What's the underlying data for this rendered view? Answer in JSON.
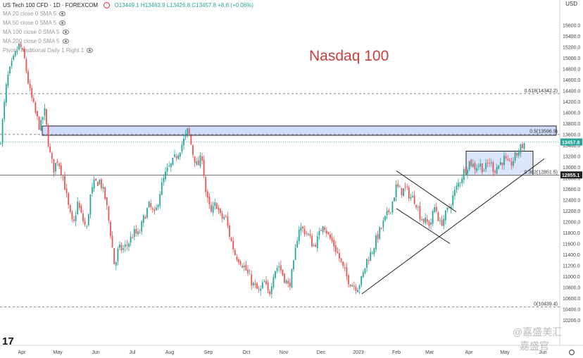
{
  "header": {
    "title": "US Tech 100 CFD · 1D · FOREXCOM",
    "ohlc": "O13449.1 H13463.9 L13426.8 C13457.8 +8.6 (+0.06%)",
    "ma_lines": [
      "MA 20 close 0 SMA 5",
      "MA 50 close 0 SMA 5",
      "MA 100 close 0 SMA 5",
      "MA 200 close 0 SMA 5",
      "Pivots Traditional Daily 1 Right 1"
    ]
  },
  "watermarks": [
    "@嘉盛美汇",
    "嘉盛官"
  ],
  "colors": {
    "up": "#26a69a",
    "down": "#ef5350",
    "zone": "#cfdcfb",
    "title": "#c8403f"
  },
  "chart_data": {
    "type": "candlestick",
    "title": "Nasdaq 100",
    "currency": "USD",
    "ylim": [
      10100,
      15900
    ],
    "xlim": [
      0,
      770
    ],
    "y_ticks": [
      15600,
      15400,
      15200,
      15000,
      14800,
      14600,
      14400,
      14200,
      14000,
      13800,
      13600,
      13400,
      13200,
      13000,
      12800,
      12600,
      12400,
      12200,
      12000,
      11800,
      11600,
      11400,
      11200,
      11000,
      10800,
      10600,
      10400,
      10200
    ],
    "x_ticks": [
      {
        "label": "Apr",
        "x": 31
      },
      {
        "label": "May",
        "x": 82
      },
      {
        "label": "Jun",
        "x": 136
      },
      {
        "label": "Jul",
        "x": 188
      },
      {
        "label": "Aug",
        "x": 241
      },
      {
        "label": "Sep",
        "x": 296
      },
      {
        "label": "Oct",
        "x": 350
      },
      {
        "label": "Nov",
        "x": 403
      },
      {
        "label": "Dec",
        "x": 456
      },
      {
        "label": "2023",
        "x": 509
      },
      {
        "label": "Feb",
        "x": 563
      },
      {
        "label": "Mar",
        "x": 610
      },
      {
        "label": "Apr",
        "x": 666
      },
      {
        "label": "May",
        "x": 717
      },
      {
        "label": "Jun",
        "x": 771
      }
    ],
    "fib_levels": [
      {
        "label": "0.618(14342.2)",
        "value": 14342.2
      },
      {
        "label": "0.5(13596.9)",
        "value": 13596.9
      },
      {
        "label": "0.382(12851.5)",
        "value": 12851.5
      },
      {
        "label": "0(10439.4)",
        "value": 10439.4
      }
    ],
    "price_labels": [
      {
        "text": "13457.8",
        "value": 13457.8,
        "color": "#26a69a"
      },
      {
        "text": "12855.1",
        "value": 12855.1,
        "color": "#222222"
      }
    ],
    "close_line": 13457.8,
    "resistance_zone": {
      "x0": 60,
      "x1": 790,
      "y_low": 13580,
      "y_high": 13750
    },
    "consolidation_box": {
      "x0": 662,
      "x1": 757,
      "y_low": 12850,
      "y_high": 13290
    },
    "trend_lines": [
      {
        "x0": 514,
        "y0": 10680,
        "x1": 773,
        "y1": 13150
      },
      {
        "x0": 563,
        "y0": 12930,
        "x1": 648,
        "y1": 12180
      },
      {
        "x0": 563,
        "y0": 12240,
        "x1": 639,
        "y1": 11600
      }
    ],
    "path": [
      {
        "x": 0,
        "v": 13400
      },
      {
        "x": 10,
        "v": 14600
      },
      {
        "x": 20,
        "v": 15000
      },
      {
        "x": 28,
        "v": 15250
      },
      {
        "x": 35,
        "v": 14950
      },
      {
        "x": 42,
        "v": 14400
      },
      {
        "x": 50,
        "v": 14000
      },
      {
        "x": 57,
        "v": 13700
      },
      {
        "x": 63,
        "v": 14050
      },
      {
        "x": 70,
        "v": 13300
      },
      {
        "x": 76,
        "v": 12950
      },
      {
        "x": 82,
        "v": 13150
      },
      {
        "x": 90,
        "v": 12800
      },
      {
        "x": 98,
        "v": 12200
      },
      {
        "x": 104,
        "v": 11900
      },
      {
        "x": 110,
        "v": 12350
      },
      {
        "x": 117,
        "v": 12050
      },
      {
        "x": 123,
        "v": 11850
      },
      {
        "x": 128,
        "v": 12450
      },
      {
        "x": 134,
        "v": 12700
      },
      {
        "x": 142,
        "v": 12750
      },
      {
        "x": 150,
        "v": 12400
      },
      {
        "x": 157,
        "v": 11800
      },
      {
        "x": 163,
        "v": 11150
      },
      {
        "x": 168,
        "v": 11500
      },
      {
        "x": 175,
        "v": 11500
      },
      {
        "x": 182,
        "v": 11600
      },
      {
        "x": 190,
        "v": 11800
      },
      {
        "x": 197,
        "v": 11750
      },
      {
        "x": 205,
        "v": 12100
      },
      {
        "x": 212,
        "v": 12300
      },
      {
        "x": 220,
        "v": 12100
      },
      {
        "x": 228,
        "v": 12600
      },
      {
        "x": 236,
        "v": 12900
      },
      {
        "x": 244,
        "v": 13050
      },
      {
        "x": 252,
        "v": 13250
      },
      {
        "x": 260,
        "v": 13450
      },
      {
        "x": 267,
        "v": 13680
      },
      {
        "x": 274,
        "v": 13250
      },
      {
        "x": 280,
        "v": 13000
      },
      {
        "x": 287,
        "v": 13200
      },
      {
        "x": 293,
        "v": 12450
      },
      {
        "x": 300,
        "v": 12150
      },
      {
        "x": 307,
        "v": 12350
      },
      {
        "x": 314,
        "v": 12050
      },
      {
        "x": 320,
        "v": 12100
      },
      {
        "x": 327,
        "v": 11700
      },
      {
        "x": 334,
        "v": 11400
      },
      {
        "x": 341,
        "v": 11300
      },
      {
        "x": 348,
        "v": 11150
      },
      {
        "x": 355,
        "v": 10950
      },
      {
        "x": 362,
        "v": 10800
      },
      {
        "x": 369,
        "v": 10700
      },
      {
        "x": 375,
        "v": 10900
      },
      {
        "x": 382,
        "v": 10650
      },
      {
        "x": 389,
        "v": 11100
      },
      {
        "x": 396,
        "v": 11200
      },
      {
        "x": 403,
        "v": 11000
      },
      {
        "x": 410,
        "v": 10800
      },
      {
        "x": 417,
        "v": 11200
      },
      {
        "x": 424,
        "v": 11900
      },
      {
        "x": 431,
        "v": 11850
      },
      {
        "x": 438,
        "v": 11750
      },
      {
        "x": 445,
        "v": 11550
      },
      {
        "x": 452,
        "v": 11700
      },
      {
        "x": 459,
        "v": 12000
      },
      {
        "x": 466,
        "v": 11750
      },
      {
        "x": 473,
        "v": 11600
      },
      {
        "x": 480,
        "v": 11400
      },
      {
        "x": 487,
        "v": 11150
      },
      {
        "x": 494,
        "v": 10950
      },
      {
        "x": 501,
        "v": 10850
      },
      {
        "x": 507,
        "v": 10800
      },
      {
        "x": 514,
        "v": 10950
      },
      {
        "x": 521,
        "v": 11300
      },
      {
        "x": 528,
        "v": 11450
      },
      {
        "x": 535,
        "v": 11700
      },
      {
        "x": 542,
        "v": 11900
      },
      {
        "x": 549,
        "v": 12100
      },
      {
        "x": 556,
        "v": 12300
      },
      {
        "x": 563,
        "v": 12650
      },
      {
        "x": 569,
        "v": 12550
      },
      {
        "x": 576,
        "v": 12600
      },
      {
        "x": 583,
        "v": 12450
      },
      {
        "x": 590,
        "v": 12400
      },
      {
        "x": 597,
        "v": 12100
      },
      {
        "x": 604,
        "v": 12000
      },
      {
        "x": 611,
        "v": 11950
      },
      {
        "x": 618,
        "v": 12300
      },
      {
        "x": 625,
        "v": 11950
      },
      {
        "x": 632,
        "v": 12100
      },
      {
        "x": 639,
        "v": 12300
      },
      {
        "x": 646,
        "v": 12550
      },
      {
        "x": 653,
        "v": 12750
      },
      {
        "x": 660,
        "v": 12950
      },
      {
        "x": 667,
        "v": 13100
      },
      {
        "x": 674,
        "v": 13000
      },
      {
        "x": 681,
        "v": 13050
      },
      {
        "x": 688,
        "v": 12950
      },
      {
        "x": 695,
        "v": 13100
      },
      {
        "x": 702,
        "v": 12950
      },
      {
        "x": 709,
        "v": 13050
      },
      {
        "x": 716,
        "v": 13150
      },
      {
        "x": 723,
        "v": 13000
      },
      {
        "x": 730,
        "v": 13150
      },
      {
        "x": 737,
        "v": 13300
      },
      {
        "x": 746,
        "v": 13460
      }
    ]
  }
}
